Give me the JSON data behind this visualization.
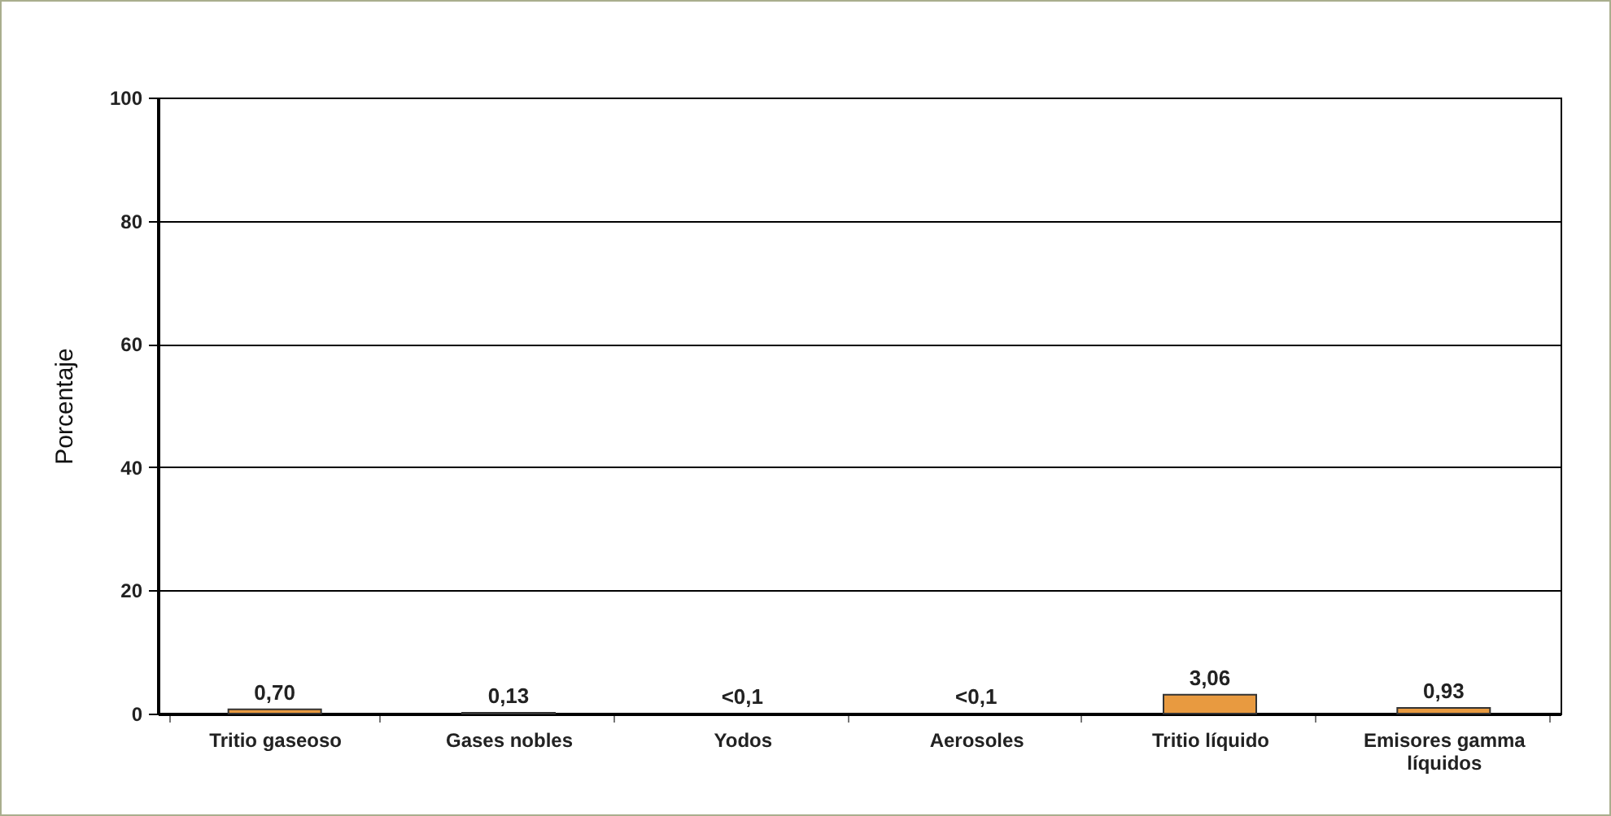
{
  "chart_data": {
    "type": "bar",
    "ylabel": "Porcentaje",
    "categories": [
      "Tritio gaseoso",
      "Gases nobles",
      "Yodos",
      "Aerosoles",
      "Tritio líquido",
      "Emisores gamma líquidos"
    ],
    "values": [
      0.7,
      0.13,
      null,
      null,
      3.06,
      0.93
    ],
    "value_labels": [
      "0,70",
      "0,13",
      "<0,1",
      "<0,1",
      "3,06",
      "0,93"
    ],
    "color": "#e89a40",
    "ylim": [
      0,
      100
    ],
    "yticks": [
      0,
      20,
      40,
      60,
      80,
      100
    ],
    "grid": "y"
  }
}
